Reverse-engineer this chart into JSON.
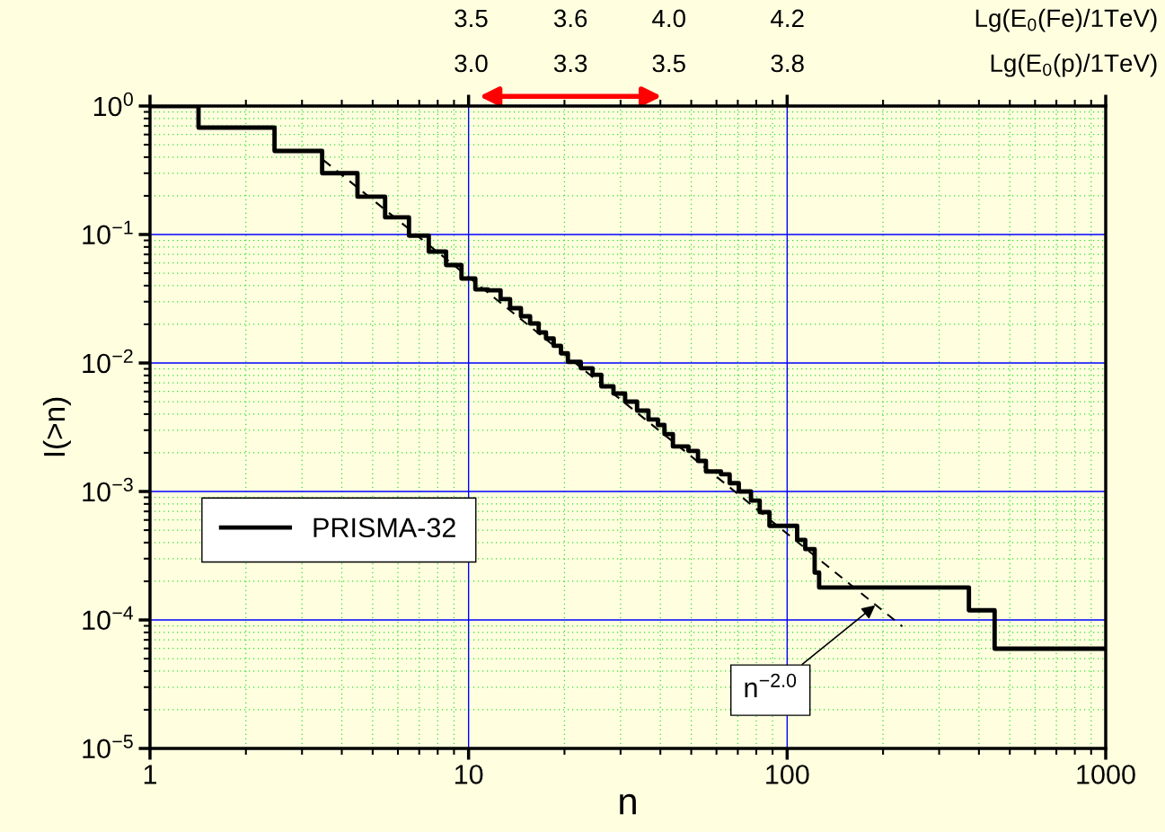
{
  "chart_data": {
    "type": "step",
    "xlabel": "n",
    "ylabel": "I(>n)",
    "log": "xy",
    "grid": true,
    "legend": "left",
    "marker": "none",
    "xlim": [
      1,
      1000
    ],
    "ylim": [
      1e-05,
      1
    ],
    "xticks": [
      1,
      {
        "value": 2,
        "label": null
      },
      {
        "value": 3,
        "label": null
      },
      {
        "value": 4,
        "label": null
      },
      {
        "value": 5,
        "label": null
      },
      {
        "value": 6,
        "label": null
      },
      {
        "value": 7,
        "label": null
      },
      {
        "value": 8,
        "label": null
      },
      {
        "value": 9,
        "label": null
      },
      10,
      {
        "value": 20,
        "label": null
      },
      {
        "value": 30,
        "label": null
      },
      {
        "value": 40,
        "label": null
      },
      {
        "value": 50,
        "label": null
      },
      {
        "value": 60,
        "label": null
      },
      {
        "value": 70,
        "label": null
      },
      {
        "value": 80,
        "label": null
      },
      {
        "value": 90,
        "label": null
      },
      100,
      {
        "value": 200,
        "label": null
      },
      {
        "value": 300,
        "label": null
      },
      {
        "value": 400,
        "label": null
      },
      {
        "value": 500,
        "label": null
      },
      {
        "value": 600,
        "label": null
      },
      {
        "value": 700,
        "label": null
      },
      {
        "value": 800,
        "label": null
      },
      {
        "value": 900,
        "label": null
      },
      1000
    ],
    "yticks": [
      {
        "value": 1e-05,
        "label": "10$^{−5}$"
      },
      {
        "value": 2e-05,
        "label": null
      },
      {
        "value": 3e-05,
        "label": null
      },
      {
        "value": 4e-05,
        "label": null
      },
      {
        "value": 5e-05,
        "label": null
      },
      {
        "value": 6e-05,
        "label": null
      },
      {
        "value": 7e-05,
        "label": null
      },
      {
        "value": 8e-05,
        "label": null
      },
      {
        "value": 9e-05,
        "label": null
      },
      {
        "value": 0.0001,
        "label": "10$^{−4}$"
      },
      {
        "value": 0.0002,
        "label": null
      },
      {
        "value": 0.0003,
        "label": null
      },
      {
        "value": 0.0004,
        "label": null
      },
      {
        "value": 0.0005,
        "label": null
      },
      {
        "value": 0.0006,
        "label": null
      },
      {
        "value": 0.0007,
        "label": null
      },
      {
        "value": 0.0008,
        "label": null
      },
      {
        "value": 0.0009,
        "label": null
      },
      {
        "value": 0.001,
        "label": "10$^{−3}$"
      },
      {
        "value": 0.002,
        "label": null
      },
      {
        "value": 0.003,
        "label": null
      },
      {
        "value": 0.004,
        "label": null
      },
      {
        "value": 0.005,
        "label": null
      },
      {
        "value": 0.006,
        "label": null
      },
      {
        "value": 0.007,
        "label": null
      },
      {
        "value": 0.008,
        "label": null
      },
      {
        "value": 0.009,
        "label": null
      },
      {
        "value": 0.01,
        "label": "10$^{−2}$"
      },
      {
        "value": 0.02,
        "label": null
      },
      {
        "value": 0.03,
        "label": null
      },
      {
        "value": 0.04,
        "label": null
      },
      {
        "value": 0.05,
        "label": null
      },
      {
        "value": 0.06,
        "label": null
      },
      {
        "value": 0.07,
        "label": null
      },
      {
        "value": 0.08,
        "label": null
      },
      {
        "value": 0.09,
        "label": null
      },
      {
        "value": 0.1,
        "label": "10$^{−1}$"
      },
      {
        "value": 0.2,
        "label": null
      },
      {
        "value": 0.3,
        "label": null
      },
      {
        "value": 0.4,
        "label": null
      },
      {
        "value": 0.5,
        "label": null
      },
      {
        "value": 0.6,
        "label": null
      },
      {
        "value": 0.7,
        "label": null
      },
      {
        "value": 0.8,
        "label": null
      },
      {
        "value": 0.9,
        "label": null
      },
      {
        "value": 1,
        "label": "10$^{0}$"
      }
    ],
    "series": [
      {
        "name": "PRISMA-32",
        "color": "#000000",
        "line_style": "solid",
        "x": [
          1,
          1.42,
          2.46,
          3.47,
          4.48,
          5.47,
          6.5,
          7.5,
          8.5,
          9.5,
          10.5,
          11.5,
          12.6,
          13.5,
          14.6,
          15.6,
          16.6,
          17.5,
          18.5,
          19.5,
          20.5,
          22.5,
          24.5,
          26.1,
          28.5,
          31,
          33.8,
          36.7,
          39.3,
          41.2,
          43.8,
          49,
          52.5,
          55.6,
          62,
          66,
          70.5,
          77,
          82,
          88,
          107.5,
          114,
          122,
          126,
          372,
          448,
          1000
        ],
        "values": [
          1,
          0.68,
          0.447,
          0.3,
          0.197,
          0.136,
          0.098,
          0.0736,
          0.0578,
          0.0454,
          0.0374,
          0.0368,
          0.0314,
          0.0267,
          0.0231,
          0.0203,
          0.0173,
          0.0155,
          0.0136,
          0.0119,
          0.0102,
          0.0091,
          0.0081,
          0.00658,
          0.00578,
          0.005,
          0.00426,
          0.00363,
          0.00329,
          0.0028,
          0.00224,
          0.00207,
          0.00173,
          0.00143,
          0.00136,
          0.00116,
          0.001,
          0.00085,
          0.00069,
          0.00054,
          0.00042,
          0.000356,
          0.000234,
          0.000179,
          0.000119,
          5.97e-05,
          5.97e-05
        ]
      },
      {
        "type": "line",
        "color": "#000000",
        "line_style": "dashed",
        "x": [
          3.5,
          230
        ],
        "values": [
          0.38,
          8.9e-05
        ]
      }
    ],
    "annotations": [
      "3.5",
      "3.6",
      "4.0",
      "4.2",
      "Lg(E$_{0}$(Fe)/1TeV)",
      "3.0",
      "3.3",
      "3.5",
      "3.8",
      "Lg(E$_{0}$(p)/1TeV)",
      {
        "text": "n$^{−2.0}$",
        "x": 189,
        "y": 0.00013
      }
    ]
  }
}
